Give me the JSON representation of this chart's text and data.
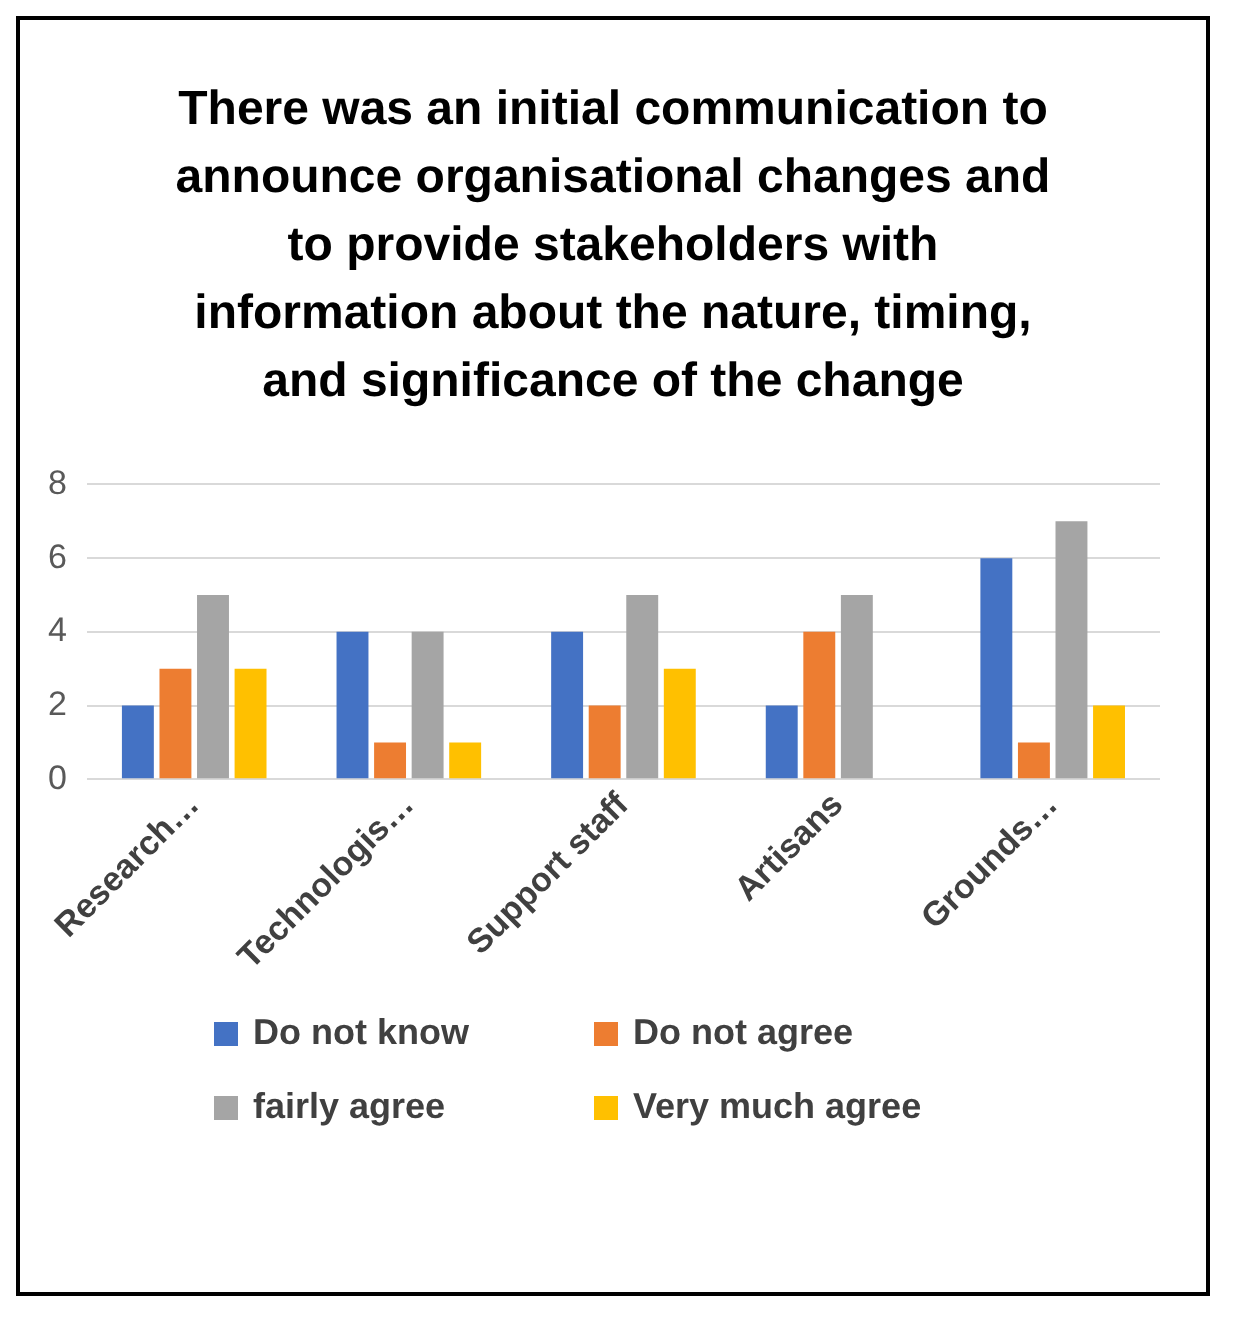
{
  "chart_data": {
    "type": "bar",
    "title": "There was an initial communication to announce organisational changes and to provide stakeholders with information about the nature, timing, and significance of the change",
    "categories": [
      "Research…",
      "Technologis…",
      "Support staff",
      "Artisans",
      "Grounds…"
    ],
    "series": [
      {
        "name": "Do not know",
        "color": "#4472c4",
        "values": [
          2,
          4,
          4,
          2,
          6
        ]
      },
      {
        "name": "Do not agree",
        "color": "#ed7d31",
        "values": [
          3,
          1,
          2,
          4,
          1
        ]
      },
      {
        "name": "fairly agree",
        "color": "#a5a5a5",
        "values": [
          5,
          4,
          5,
          5,
          7
        ]
      },
      {
        "name": "Very much agree",
        "color": "#ffc000",
        "values": [
          3,
          1,
          3,
          0,
          2
        ]
      }
    ],
    "ylim": [
      0,
      8
    ],
    "yticks": [
      0,
      2,
      4,
      6,
      8
    ],
    "grid": "y",
    "legend": "bottom"
  }
}
